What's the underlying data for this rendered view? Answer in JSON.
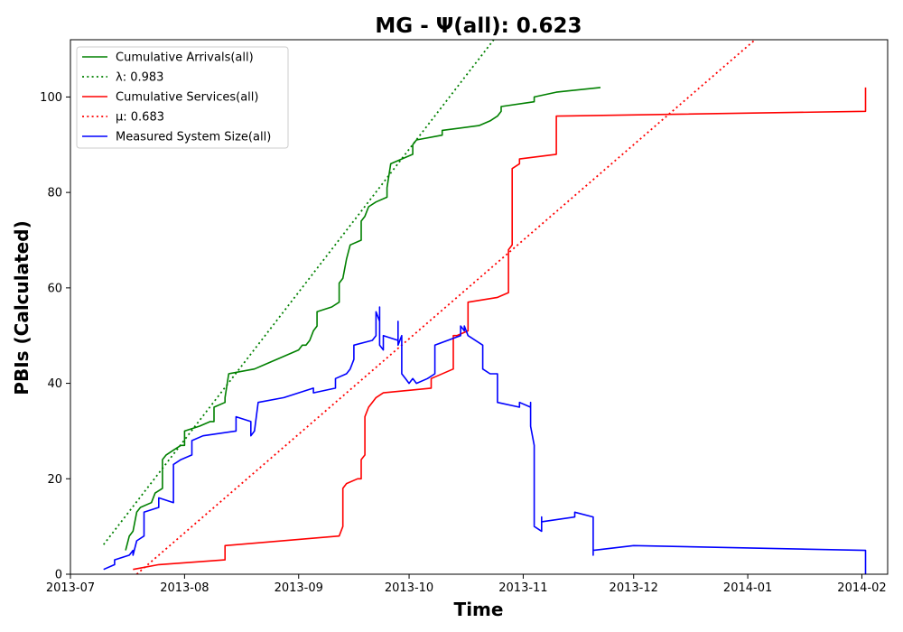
{
  "chart_data": {
    "type": "line",
    "title": "MG -  Ψ(all): 0.623",
    "xlabel": "Time",
    "ylabel": "PBIs (Calculated)",
    "xlim": [
      "2013-07-01",
      "2014-02-08"
    ],
    "ylim": [
      0,
      112
    ],
    "x_ticks": [
      "2013-07",
      "2013-08",
      "2013-09",
      "2013-10",
      "2013-11",
      "2013-12",
      "2014-01",
      "2014-02"
    ],
    "y_ticks": [
      0,
      20,
      40,
      60,
      80,
      100
    ],
    "legend_position": "upper-left",
    "series": [
      {
        "name": "Cumulative Arrivals(all)",
        "color": "#008000",
        "style": "solid",
        "points": [
          [
            "2013-07-16",
            5
          ],
          [
            "2013-07-17",
            8
          ],
          [
            "2013-07-18",
            9
          ],
          [
            "2013-07-19",
            13
          ],
          [
            "2013-07-20",
            14
          ],
          [
            "2013-07-23",
            15
          ],
          [
            "2013-07-24",
            17
          ],
          [
            "2013-07-26",
            18
          ],
          [
            "2013-07-26",
            24
          ],
          [
            "2013-07-27",
            25
          ],
          [
            "2013-07-29",
            26
          ],
          [
            "2013-07-31",
            27
          ],
          [
            "2013-08-01",
            27
          ],
          [
            "2013-08-01",
            30
          ],
          [
            "2013-08-05",
            31
          ],
          [
            "2013-08-08",
            32
          ],
          [
            "2013-08-09",
            32
          ],
          [
            "2013-08-09",
            35
          ],
          [
            "2013-08-12",
            36
          ],
          [
            "2013-08-12",
            37
          ],
          [
            "2013-08-13",
            42
          ],
          [
            "2013-08-20",
            43
          ],
          [
            "2013-08-23",
            44
          ],
          [
            "2013-08-26",
            45
          ],
          [
            "2013-08-29",
            46
          ],
          [
            "2013-09-01",
            47
          ],
          [
            "2013-09-02",
            48
          ],
          [
            "2013-09-03",
            48
          ],
          [
            "2013-09-04",
            49
          ],
          [
            "2013-09-05",
            51
          ],
          [
            "2013-09-06",
            52
          ],
          [
            "2013-09-06",
            55
          ],
          [
            "2013-09-10",
            56
          ],
          [
            "2013-09-12",
            57
          ],
          [
            "2013-09-12",
            61
          ],
          [
            "2013-09-13",
            62
          ],
          [
            "2013-09-14",
            66
          ],
          [
            "2013-09-15",
            69
          ],
          [
            "2013-09-18",
            70
          ],
          [
            "2013-09-18",
            74
          ],
          [
            "2013-09-19",
            75
          ],
          [
            "2013-09-20",
            77
          ],
          [
            "2013-09-22",
            78
          ],
          [
            "2013-09-25",
            79
          ],
          [
            "2013-09-25",
            81
          ],
          [
            "2013-09-26",
            86
          ],
          [
            "2013-09-29",
            87
          ],
          [
            "2013-10-02",
            88
          ],
          [
            "2013-10-02",
            90
          ],
          [
            "2013-10-03",
            91
          ],
          [
            "2013-10-10",
            92
          ],
          [
            "2013-10-10",
            93
          ],
          [
            "2013-10-20",
            94
          ],
          [
            "2013-10-23",
            95
          ],
          [
            "2013-10-25",
            96
          ],
          [
            "2013-10-26",
            97
          ],
          [
            "2013-10-26",
            98
          ],
          [
            "2013-11-04",
            99
          ],
          [
            "2013-11-04",
            100
          ],
          [
            "2013-11-10",
            101
          ],
          [
            "2013-11-22",
            102
          ]
        ]
      },
      {
        "name": "λ: 0.983",
        "color": "#008000",
        "style": "dotted",
        "points": [
          [
            "2013-07-10",
            6.2
          ],
          [
            "2013-10-24",
            112
          ]
        ]
      },
      {
        "name": "Cumulative Services(all)",
        "color": "#ff0000",
        "style": "solid",
        "points": [
          [
            "2013-07-18",
            1
          ],
          [
            "2013-07-25",
            2
          ],
          [
            "2013-08-12",
            3
          ],
          [
            "2013-08-12",
            6
          ],
          [
            "2013-09-12",
            8
          ],
          [
            "2013-09-13",
            10
          ],
          [
            "2013-09-13",
            18
          ],
          [
            "2013-09-14",
            19
          ],
          [
            "2013-09-17",
            20
          ],
          [
            "2013-09-18",
            20
          ],
          [
            "2013-09-18",
            24
          ],
          [
            "2013-09-19",
            25
          ],
          [
            "2013-09-19",
            33
          ],
          [
            "2013-09-20",
            35
          ],
          [
            "2013-09-21",
            36
          ],
          [
            "2013-09-22",
            37
          ],
          [
            "2013-09-24",
            38
          ],
          [
            "2013-10-07",
            39
          ],
          [
            "2013-10-07",
            41
          ],
          [
            "2013-10-13",
            43
          ],
          [
            "2013-10-13",
            49
          ],
          [
            "2013-10-13",
            50
          ],
          [
            "2013-10-14",
            50
          ],
          [
            "2013-10-17",
            51
          ],
          [
            "2013-10-17",
            57
          ],
          [
            "2013-10-25",
            58
          ],
          [
            "2013-10-28",
            59
          ],
          [
            "2013-10-28",
            68
          ],
          [
            "2013-10-29",
            69
          ],
          [
            "2013-10-29",
            85
          ],
          [
            "2013-10-31",
            86
          ],
          [
            "2013-10-31",
            87
          ],
          [
            "2013-11-10",
            88
          ],
          [
            "2013-11-10",
            96
          ],
          [
            "2014-02-02",
            97
          ],
          [
            "2014-02-02",
            102
          ]
        ]
      },
      {
        "name": "μ: 0.683",
        "color": "#ff0000",
        "style": "dotted",
        "points": [
          [
            "2013-07-19",
            0
          ],
          [
            "2014-01-03",
            112
          ]
        ]
      },
      {
        "name": "Measured System Size(all)",
        "color": "#0000ff",
        "style": "solid",
        "points": [
          [
            "2013-07-10",
            1
          ],
          [
            "2013-07-13",
            2
          ],
          [
            "2013-07-13",
            3
          ],
          [
            "2013-07-17",
            4
          ],
          [
            "2013-07-18",
            5
          ],
          [
            "2013-07-18",
            4
          ],
          [
            "2013-07-19",
            7
          ],
          [
            "2013-07-21",
            8
          ],
          [
            "2013-07-21",
            13
          ],
          [
            "2013-07-25",
            14
          ],
          [
            "2013-07-25",
            16
          ],
          [
            "2013-07-29",
            15
          ],
          [
            "2013-07-29",
            23
          ],
          [
            "2013-07-31",
            24
          ],
          [
            "2013-08-03",
            25
          ],
          [
            "2013-08-03",
            28
          ],
          [
            "2013-08-06",
            29
          ],
          [
            "2013-08-15",
            30
          ],
          [
            "2013-08-15",
            33
          ],
          [
            "2013-08-19",
            32
          ],
          [
            "2013-08-19",
            29
          ],
          [
            "2013-08-20",
            30
          ],
          [
            "2013-08-21",
            36
          ],
          [
            "2013-08-28",
            37
          ],
          [
            "2013-09-01",
            38
          ],
          [
            "2013-09-05",
            39
          ],
          [
            "2013-09-05",
            38
          ],
          [
            "2013-09-11",
            39
          ],
          [
            "2013-09-11",
            41
          ],
          [
            "2013-09-14",
            42
          ],
          [
            "2013-09-15",
            43
          ],
          [
            "2013-09-16",
            45
          ],
          [
            "2013-09-16",
            48
          ],
          [
            "2013-09-21",
            49
          ],
          [
            "2013-09-22",
            50
          ],
          [
            "2013-09-22",
            55
          ],
          [
            "2013-09-23",
            53
          ],
          [
            "2013-09-23",
            56
          ],
          [
            "2013-09-23",
            48
          ],
          [
            "2013-09-24",
            47
          ],
          [
            "2013-09-24",
            50
          ],
          [
            "2013-09-28",
            49
          ],
          [
            "2013-09-28",
            53
          ],
          [
            "2013-09-28",
            48
          ],
          [
            "2013-09-29",
            50
          ],
          [
            "2013-09-29",
            42
          ],
          [
            "2013-09-30",
            41
          ],
          [
            "2013-10-01",
            40
          ],
          [
            "2013-10-02",
            41
          ],
          [
            "2013-10-03",
            40
          ],
          [
            "2013-10-06",
            41
          ],
          [
            "2013-10-08",
            42
          ],
          [
            "2013-10-08",
            48
          ],
          [
            "2013-10-15",
            50
          ],
          [
            "2013-10-15",
            52
          ],
          [
            "2013-10-16",
            51
          ],
          [
            "2013-10-16",
            52
          ],
          [
            "2013-10-17",
            50
          ],
          [
            "2013-10-21",
            48
          ],
          [
            "2013-10-21",
            46
          ],
          [
            "2013-10-21",
            43
          ],
          [
            "2013-10-23",
            42
          ],
          [
            "2013-10-25",
            42
          ],
          [
            "2013-10-25",
            36
          ],
          [
            "2013-10-31",
            35
          ],
          [
            "2013-10-31",
            36
          ],
          [
            "2013-11-03",
            35
          ],
          [
            "2013-11-03",
            36
          ],
          [
            "2013-11-03",
            31
          ],
          [
            "2013-11-04",
            27
          ],
          [
            "2013-11-04",
            26
          ],
          [
            "2013-11-04",
            10
          ],
          [
            "2013-11-06",
            9
          ],
          [
            "2013-11-06",
            12
          ],
          [
            "2013-11-06",
            11
          ],
          [
            "2013-11-15",
            12
          ],
          [
            "2013-11-15",
            13
          ],
          [
            "2013-11-20",
            12
          ],
          [
            "2013-11-20",
            4
          ],
          [
            "2013-11-20",
            5
          ],
          [
            "2013-12-01",
            6
          ],
          [
            "2014-02-02",
            5
          ],
          [
            "2014-02-02",
            0
          ]
        ]
      }
    ]
  }
}
